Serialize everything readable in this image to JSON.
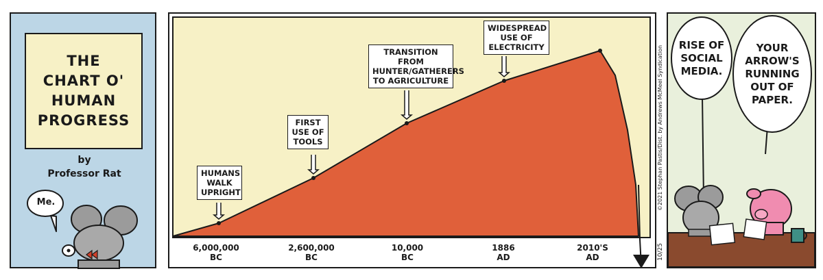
{
  "panel1": {
    "title_lines": [
      "THE",
      "CHART O'",
      "HUMAN",
      "PROGRESS"
    ],
    "byline_by": "by",
    "byline_author": "Professor Rat",
    "speech": "Me."
  },
  "panel2": {
    "annotations": [
      {
        "lines": [
          "HUMANS",
          "WALK",
          "UPRIGHT"
        ]
      },
      {
        "lines": [
          "FIRST",
          "USE OF",
          "TOOLS"
        ]
      },
      {
        "lines": [
          "TRANSITION FROM",
          "HUNTER/GATHERERS",
          "TO AGRICULTURE"
        ]
      },
      {
        "lines": [
          "WIDESPREAD",
          "USE OF",
          "ELECTRICITY"
        ]
      }
    ],
    "x_labels": [
      {
        "value": "6,000,000",
        "era": "BC"
      },
      {
        "value": "2,600,000",
        "era": "BC"
      },
      {
        "value": "10,000",
        "era": "BC"
      },
      {
        "value": "1886",
        "era": "AD"
      },
      {
        "value": "2010's",
        "era": "AD"
      }
    ],
    "colors": {
      "fill": "#e0603a",
      "background": "#f7f1c6"
    }
  },
  "panel3": {
    "bubble_left_lines": [
      "RISE OF",
      "SOCIAL",
      "MEDIA."
    ],
    "bubble_right_lines": [
      "YOUR",
      "ARROW'S",
      "RUNNING",
      "OUT OF",
      "PAPER."
    ],
    "copyright": "©2021 Stephan Pastis/Dist. by Andrews McMeel Syndication",
    "date": "10/25"
  }
}
